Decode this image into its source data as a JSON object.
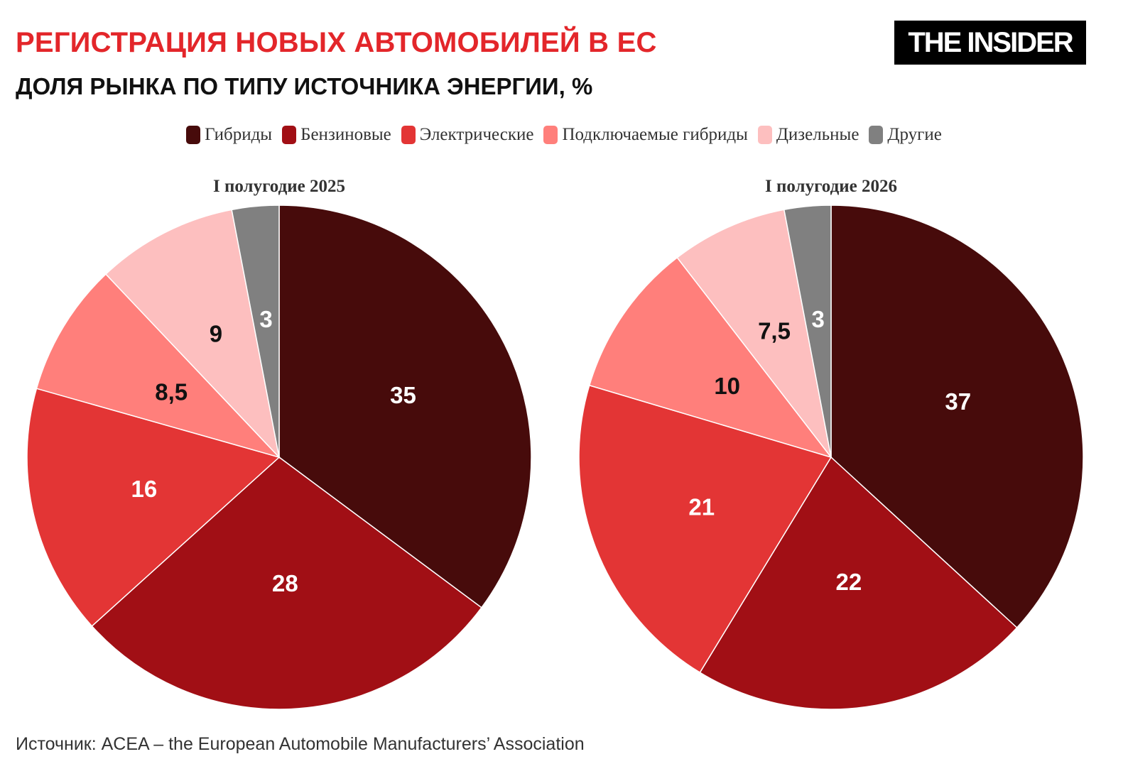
{
  "header": {
    "title": "РЕГИСТРАЦИЯ НОВЫХ АВТОМОБИЛЕЙ В ЕС",
    "subtitle": "ДОЛЯ РЫНКА ПО ТИПУ ИСТОЧНИКА ЭНЕРГИИ, %",
    "logo": "THE INSIDER"
  },
  "footer": {
    "source": "Источник: ACEA – the European Automobile Manufacturers’ Association"
  },
  "legend": [
    {
      "label": "Гибриды",
      "color": "#470b0b"
    },
    {
      "label": "Бензиновые",
      "color": "#a10f15"
    },
    {
      "label": "Электрические",
      "color": "#e33535"
    },
    {
      "label": "Подключаемые гибриды",
      "color": "#ff7f7b"
    },
    {
      "label": "Дизельные",
      "color": "#fdbfbf"
    },
    {
      "label": "Другие",
      "color": "#808080"
    }
  ],
  "chart_data": [
    {
      "type": "pie",
      "title": "I полугодие 2025",
      "categories": [
        "Гибриды",
        "Бензиновые",
        "Электрические",
        "Подключаемые гибриды",
        "Дизельные",
        "Другие"
      ],
      "values": [
        35,
        28,
        16,
        8.5,
        9,
        3
      ],
      "labels": [
        "35",
        "28",
        "16",
        "8,5",
        "9",
        "3"
      ],
      "colors": [
        "#470b0b",
        "#a10f15",
        "#e33535",
        "#ff7f7b",
        "#fdbfbf",
        "#808080"
      ],
      "label_colors": [
        "#ffffff",
        "#ffffff",
        "#ffffff",
        "#111111",
        "#111111",
        "#ffffff"
      ]
    },
    {
      "type": "pie",
      "title": "I полугодие 2026",
      "categories": [
        "Гибриды",
        "Бензиновые",
        "Электрические",
        "Подключаемые гибриды",
        "Дизельные",
        "Другие"
      ],
      "values": [
        37,
        22,
        21,
        10,
        7.5,
        3
      ],
      "labels": [
        "37",
        "22",
        "21",
        "10",
        "7,5",
        "3"
      ],
      "colors": [
        "#470b0b",
        "#a10f15",
        "#e33535",
        "#ff7f7b",
        "#fdbfbf",
        "#808080"
      ],
      "label_colors": [
        "#ffffff",
        "#ffffff",
        "#ffffff",
        "#111111",
        "#111111",
        "#ffffff"
      ]
    }
  ]
}
